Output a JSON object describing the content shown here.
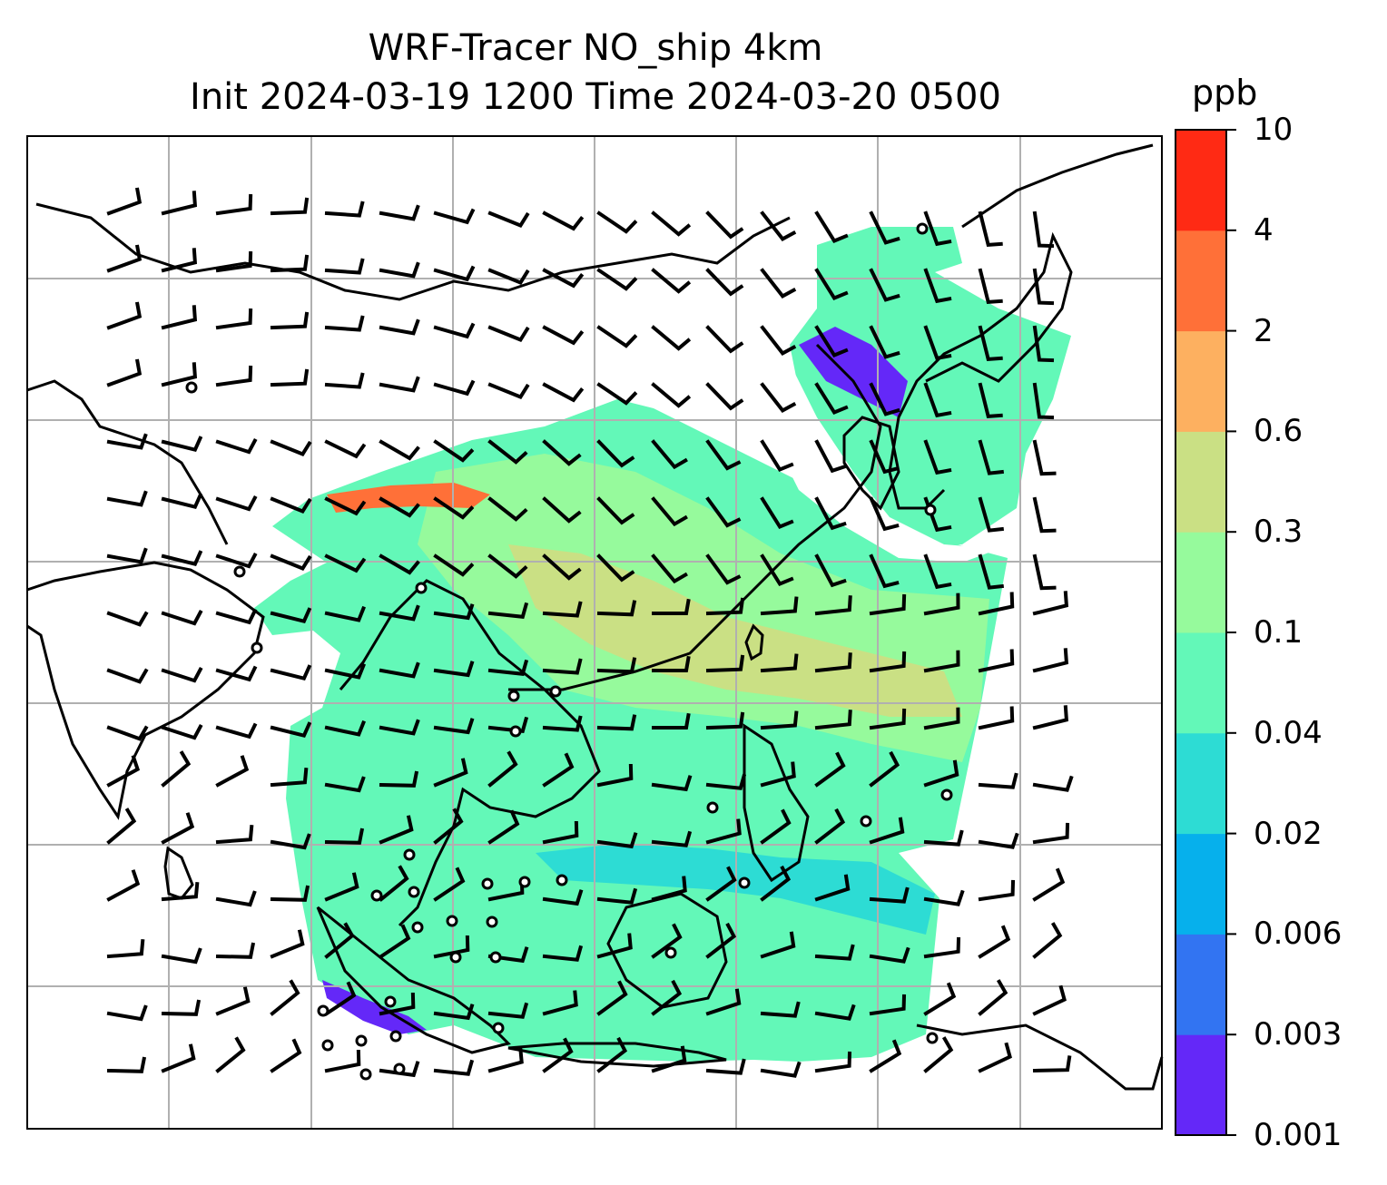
{
  "title_line1": "WRF-Tracer NO_ship 4km",
  "title_line2": "Init 2024-03-19 1200 Time 2024-03-20 0500",
  "colorbar": {
    "unit": "ppb",
    "levels": [
      "0.001",
      "0.003",
      "0.006",
      "0.02",
      "0.04",
      "0.1",
      "0.3",
      "0.6",
      "2",
      "4",
      "10"
    ],
    "colors": [
      "#6428f8",
      "#3274f2",
      "#06b0ec",
      "#2ddcd4",
      "#63f8b8",
      "#96fa9c",
      "#cae084",
      "#fdb060",
      "#ff7038",
      "#ff2a14"
    ]
  },
  "map": {
    "gridline_color": "#b0b0b0",
    "coastline_color": "#000000",
    "barb_color": "#000000"
  }
}
